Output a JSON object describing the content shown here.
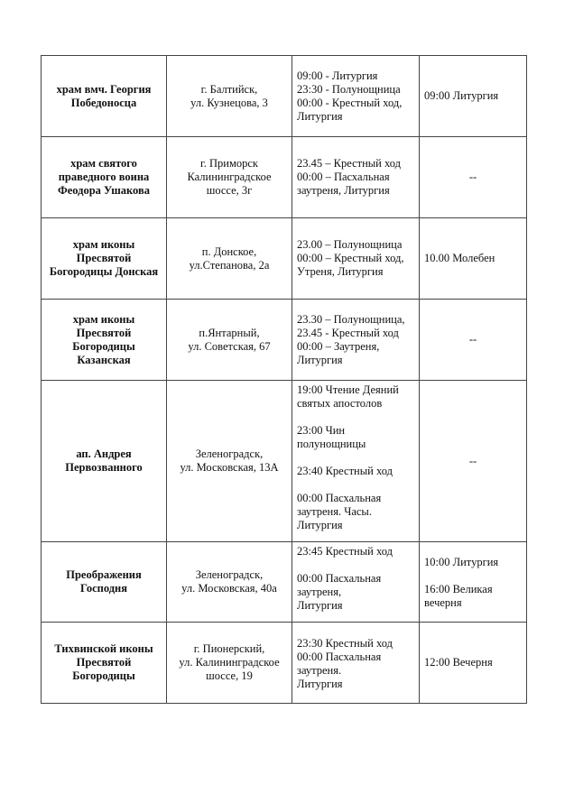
{
  "rows": [
    {
      "name": "храм вмч. Георгия\nПобедоносца",
      "address": "г. Балтийск,\nул. Кузнецова, 3",
      "schedule": "09:00 - Литургия\n23:30 - Полунощница\n00:00 - Крестный ход,\nЛитургия",
      "next_day": "09:00 Литургия"
    },
    {
      "name": "храм святого\nправедного воина\nФеодора Ушакова",
      "address": "г. Приморск\nКалининградское\nшоссе, 3г",
      "schedule": "23.45 – Крестный ход\n00:00 – Пасхальная\nзаутреня, Литургия",
      "next_day": "--"
    },
    {
      "name": "храм иконы\nПресвятой\nБогородицы Донская",
      "address": "п. Донское,\nул.Степанова, 2а",
      "schedule": "23.00 – Полунощница\n00:00 – Крестный ход,\nУтреня, Литургия",
      "next_day": "10.00 Молебен"
    },
    {
      "name": "храм иконы\nПресвятой\nБогородицы\nКазанская",
      "address": "п.Янтарный,\nул. Советская, 67",
      "schedule": "23.30 – Полунощница,\n23.45 - Крестный ход\n00:00 – Заутреня,\nЛитургия",
      "next_day": "--"
    },
    {
      "name": "ап. Андрея\nПервозванного",
      "address": "Зеленоградск,\nул. Московская, 13А",
      "schedule": "19:00  Чтение Деяний\nсвятых апостолов\n\n23:00  Чин\nполунощницы\n\n23:40  Крестный ход\n\n00:00 Пасхальная\nзаутреня. Часы.\nЛитургия",
      "next_day": "--"
    },
    {
      "name": "Преображения\nГосподня",
      "address": "Зеленоградск,\nул. Московская, 40а",
      "schedule": "23:45  Крестный ход\n\n00:00  Пасхальная\nзаутреня,\nЛитургия",
      "next_day": "10:00 Литургия\n\n16:00 Великая\nвечерня"
    },
    {
      "name": "Тихвинской иконы\nПресвятой\nБогородицы",
      "address": "г. Пионерский,\nул. Калининградское\nшоссе, 19",
      "schedule": "23:30 Крестный ход\n00:00 Пасхальная\nзаутреня.\nЛитургия",
      "next_day": "12:00 Вечерня"
    }
  ]
}
